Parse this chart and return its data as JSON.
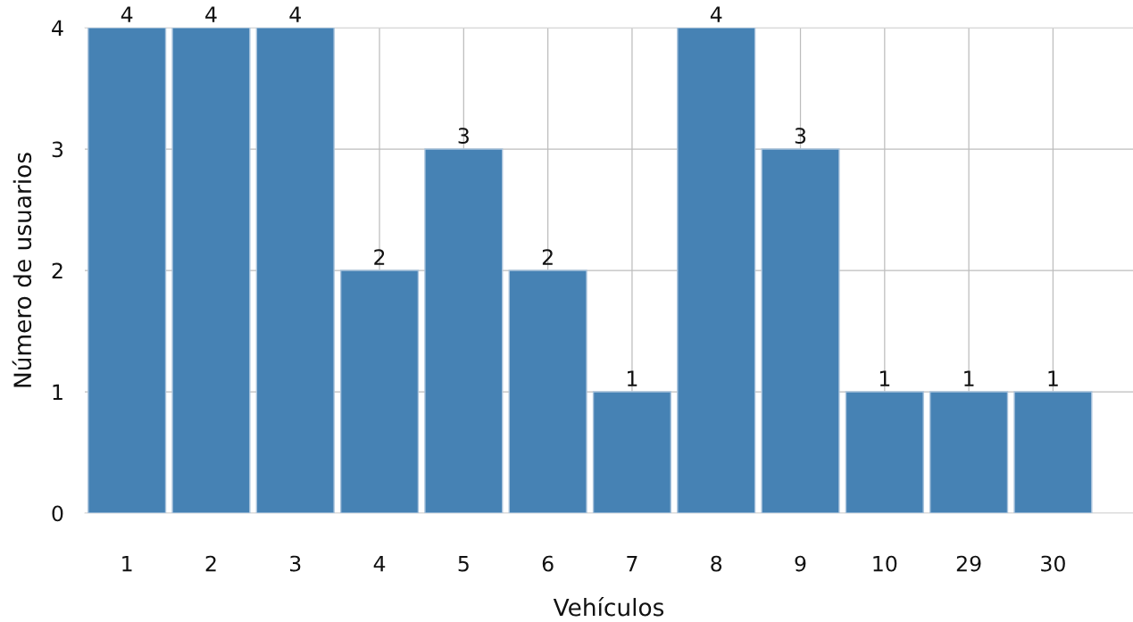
{
  "chart_data": {
    "type": "bar",
    "xlabel": "Vehículos",
    "ylabel": "Número de usuarios",
    "categories": [
      "1",
      "2",
      "3",
      "4",
      "5",
      "6",
      "7",
      "8",
      "9",
      "10",
      "29",
      "30"
    ],
    "values": [
      4,
      4,
      4,
      2,
      3,
      2,
      1,
      4,
      3,
      1,
      1,
      1
    ],
    "color": "#4682b4",
    "ylim": [
      0,
      4
    ],
    "yticks": [
      0,
      1,
      2,
      3,
      4
    ],
    "grid": true,
    "data_labels": true
  }
}
